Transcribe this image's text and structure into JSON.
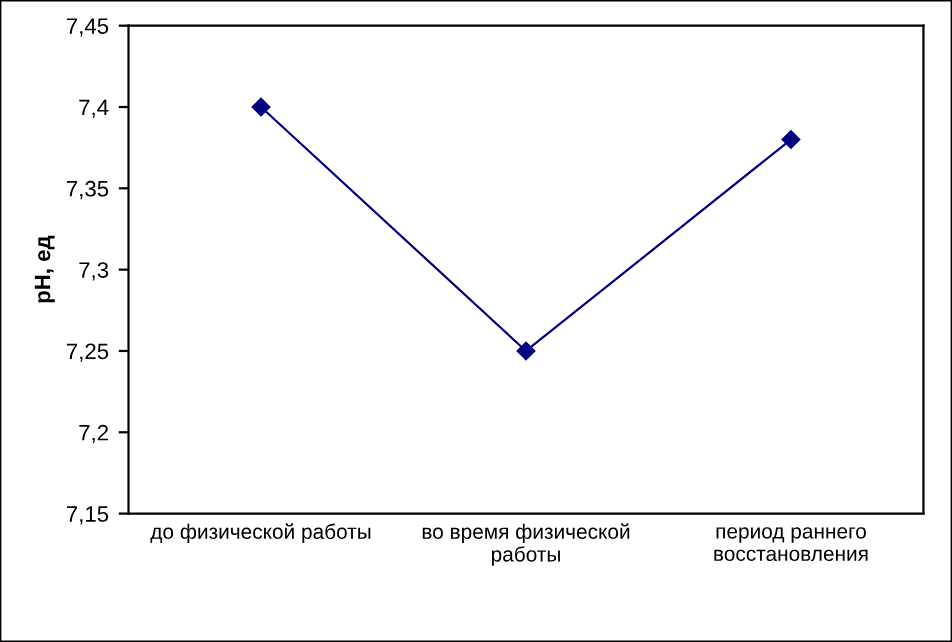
{
  "chart_data": {
    "type": "line",
    "ylabel": "pH, ед",
    "categories": [
      "до физической работы",
      "во время физической\nработы",
      "период раннего\nвосстановления"
    ],
    "series": [
      {
        "color": "#000080",
        "values": [
          7.4,
          7.25,
          7.38
        ]
      }
    ],
    "ylim": [
      7.15,
      7.45
    ],
    "yticks": [
      {
        "value": 7.15,
        "label": "7,15"
      },
      {
        "value": 7.2,
        "label": "7,2"
      },
      {
        "value": 7.25,
        "label": "7,25"
      },
      {
        "value": 7.3,
        "label": "7,3"
      },
      {
        "value": 7.35,
        "label": "7,35"
      },
      {
        "value": 7.4,
        "label": "7,4"
      },
      {
        "value": 7.45,
        "label": "7,45"
      }
    ],
    "marker": "diamond",
    "line_style": "solid",
    "grid": false,
    "legend": false
  }
}
